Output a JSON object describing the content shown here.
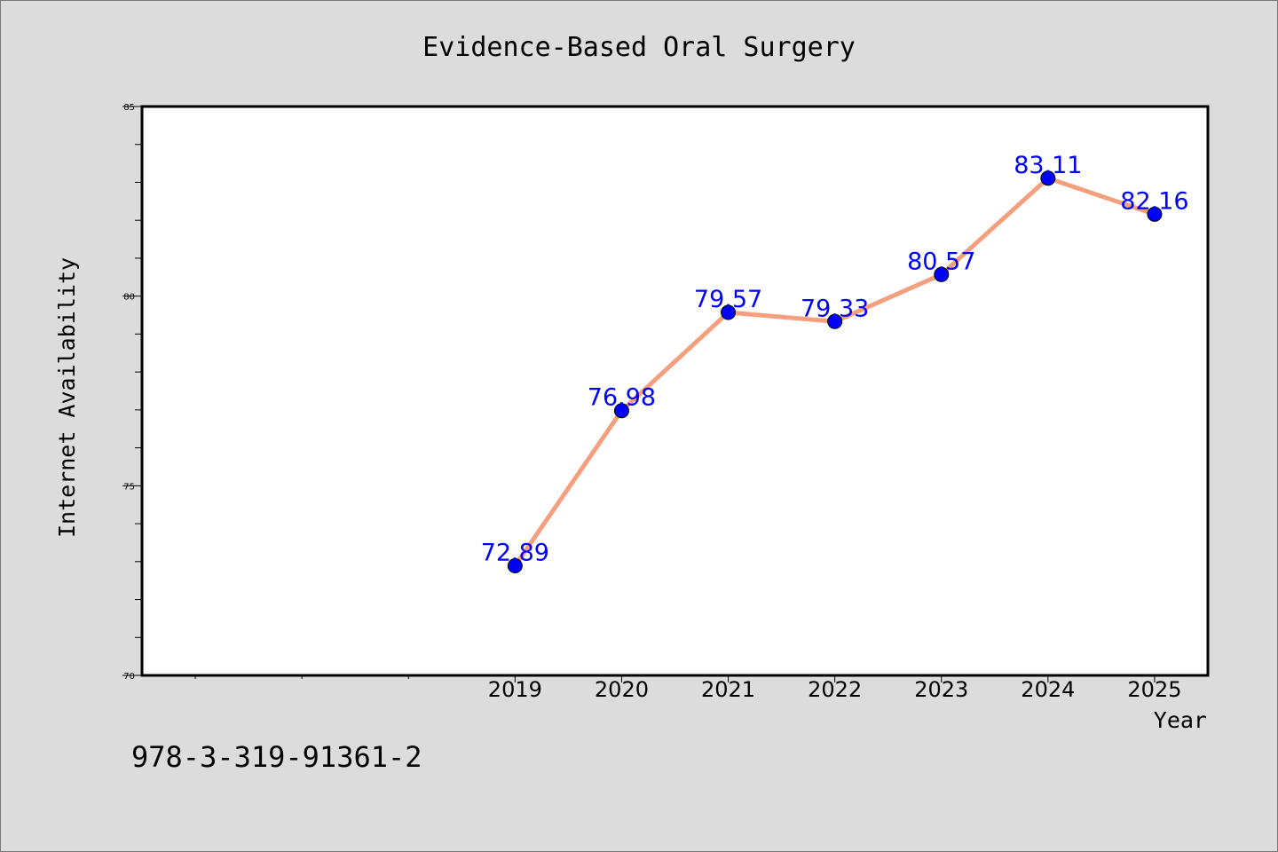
{
  "chart_data": {
    "type": "line",
    "title": "Evidence-Based Oral Surgery",
    "xlabel": "Year",
    "ylabel": "Internet Availability",
    "x": [
      2019,
      2020,
      2021,
      2022,
      2023,
      2024,
      2025
    ],
    "x_tick_labels": [
      "2019",
      "2020",
      "2021",
      "2022",
      "2023",
      "2024",
      "2025"
    ],
    "series": [
      {
        "values": [
          72.89,
          76.98,
          79.57,
          79.33,
          80.57,
          83.11,
          82.16
        ],
        "data_labels": [
          "72.89",
          "76.98",
          "79.57",
          "79.33",
          "80.57",
          "83.11",
          "82.16"
        ],
        "line_color": "#f4a07e",
        "marker_color": "#0000ff",
        "label_color": "#0000ff"
      }
    ],
    "xlim": [
      2015.5,
      2025.5
    ],
    "ylim": [
      70,
      85
    ],
    "y_major_ticks": [
      70,
      75,
      80,
      85
    ],
    "y_tick_labels": [
      "70",
      "75",
      "80",
      "85"
    ],
    "grid": false,
    "background": "#dcdcdc",
    "plot_background": "#ffffff"
  },
  "footer": {
    "text": "978-3-319-91361-2"
  }
}
